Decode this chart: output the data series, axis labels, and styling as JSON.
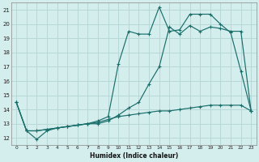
{
  "xlabel": "Humidex (Indice chaleur)",
  "bg_color": "#d4eeee",
  "grid_color": "#b8d8d8",
  "line_color": "#1a6e6a",
  "xlim": [
    -0.5,
    23.5
  ],
  "ylim": [
    11.5,
    21.5
  ],
  "xticks": [
    0,
    1,
    2,
    3,
    4,
    5,
    6,
    7,
    8,
    9,
    10,
    11,
    12,
    13,
    14,
    15,
    16,
    17,
    18,
    19,
    20,
    21,
    22,
    23
  ],
  "yticks": [
    12,
    13,
    14,
    15,
    16,
    17,
    18,
    19,
    20,
    21
  ],
  "series1_x": [
    0,
    1,
    2,
    3,
    4,
    5,
    6,
    7,
    8,
    9,
    10,
    11,
    12,
    13,
    14,
    15,
    16,
    17,
    18,
    19,
    20,
    21,
    22,
    23
  ],
  "series1_y": [
    14.5,
    12.5,
    11.9,
    12.5,
    12.7,
    12.8,
    12.9,
    13.0,
    13.0,
    13.2,
    13.6,
    14.1,
    14.5,
    15.8,
    17.0,
    19.8,
    19.3,
    19.9,
    19.5,
    19.8,
    19.7,
    19.5,
    19.5,
    13.9
  ],
  "series2_x": [
    0,
    1,
    2,
    3,
    4,
    5,
    6,
    7,
    8,
    9,
    10,
    11,
    12,
    13,
    14,
    15,
    16,
    17,
    18,
    19,
    20,
    21,
    22,
    23
  ],
  "series2_y": [
    14.5,
    12.5,
    12.5,
    12.6,
    12.7,
    12.8,
    12.9,
    13.0,
    13.2,
    13.5,
    17.2,
    19.5,
    19.3,
    19.3,
    21.2,
    19.5,
    19.6,
    20.7,
    20.7,
    20.7,
    20.0,
    19.4,
    16.7,
    13.9
  ],
  "series3_x": [
    0,
    1,
    2,
    3,
    4,
    5,
    6,
    7,
    8,
    9,
    10,
    11,
    12,
    13,
    14,
    15,
    16,
    17,
    18,
    19,
    20,
    21,
    22,
    23
  ],
  "series3_y": [
    14.5,
    12.5,
    12.5,
    12.6,
    12.7,
    12.8,
    12.9,
    13.0,
    13.1,
    13.3,
    13.5,
    13.6,
    13.7,
    13.8,
    13.9,
    13.9,
    14.0,
    14.1,
    14.2,
    14.3,
    14.3,
    14.3,
    14.3,
    13.9
  ]
}
